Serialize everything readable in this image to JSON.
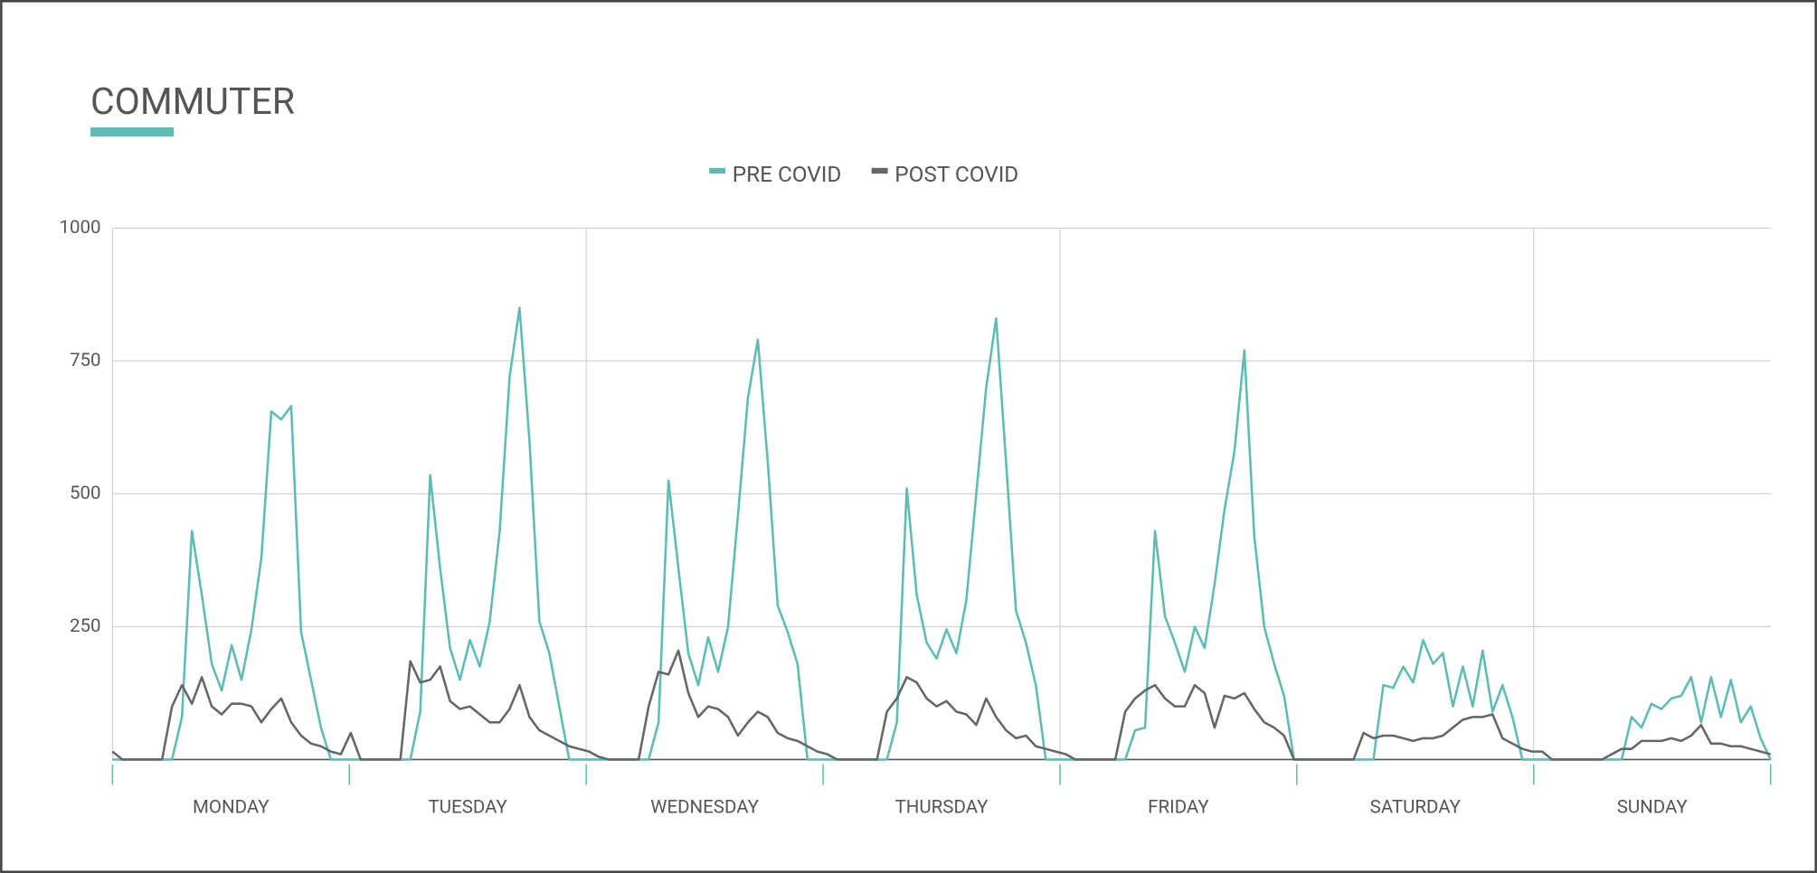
{
  "chart_data": {
    "type": "line",
    "title": "COMMUTER",
    "categories": [
      null,
      null,
      null,
      null,
      null,
      null,
      null,
      null,
      null,
      null,
      null,
      null,
      "MONDAY",
      null,
      null,
      null,
      null,
      null,
      null,
      null,
      null,
      null,
      null,
      null,
      null,
      null,
      null,
      null,
      null,
      null,
      null,
      null,
      null,
      null,
      null,
      null,
      "TUESDAY",
      null,
      null,
      null,
      null,
      null,
      null,
      null,
      null,
      null,
      null,
      null,
      null,
      null,
      null,
      null,
      null,
      null,
      null,
      null,
      null,
      null,
      null,
      null,
      "WEDNESDAY",
      null,
      null,
      null,
      null,
      null,
      null,
      null,
      null,
      null,
      null,
      null,
      null,
      null,
      null,
      null,
      null,
      null,
      null,
      null,
      null,
      null,
      null,
      null,
      "THURSDAY",
      null,
      null,
      null,
      null,
      null,
      null,
      null,
      null,
      null,
      null,
      null,
      null,
      null,
      null,
      null,
      null,
      null,
      null,
      null,
      null,
      null,
      null,
      null,
      "FRIDAY",
      null,
      null,
      null,
      null,
      null,
      null,
      null,
      null,
      null,
      null,
      null,
      null,
      null,
      null,
      null,
      null,
      null,
      null,
      null,
      null,
      null,
      null,
      null,
      "SATURDAY",
      null,
      null,
      null,
      null,
      null,
      null,
      null,
      null,
      null,
      null,
      null,
      null,
      null,
      null,
      null,
      null,
      null,
      null,
      null,
      null,
      null,
      null,
      null,
      "SUNDAY",
      null,
      null,
      null,
      null,
      null,
      null,
      null,
      null,
      null,
      null,
      null
    ],
    "series": [
      {
        "name": "PRE COVID",
        "color": "#5dbcb6",
        "values": [
          0,
          0,
          0,
          0,
          0,
          0,
          0,
          80,
          430,
          310,
          180,
          130,
          215,
          150,
          245,
          380,
          655,
          640,
          665,
          240,
          150,
          60,
          0,
          0,
          0,
          0,
          0,
          0,
          0,
          0,
          0,
          90,
          535,
          360,
          210,
          150,
          225,
          175,
          260,
          430,
          720,
          850,
          600,
          260,
          200,
          100,
          0,
          0,
          0,
          0,
          0,
          0,
          0,
          0,
          0,
          70,
          525,
          360,
          200,
          140,
          230,
          165,
          250,
          460,
          680,
          790,
          560,
          290,
          240,
          180,
          0,
          0,
          0,
          0,
          0,
          0,
          0,
          0,
          0,
          70,
          510,
          310,
          220,
          190,
          245,
          200,
          300,
          500,
          700,
          830,
          560,
          280,
          220,
          140,
          0,
          0,
          0,
          0,
          0,
          0,
          0,
          0,
          0,
          55,
          60,
          430,
          270,
          220,
          165,
          250,
          210,
          330,
          470,
          580,
          770,
          420,
          250,
          180,
          120,
          0,
          0,
          0,
          0,
          0,
          0,
          0,
          0,
          0,
          140,
          135,
          175,
          145,
          225,
          180,
          200,
          100,
          175,
          100,
          205,
          90,
          140,
          80,
          0,
          0,
          0,
          0,
          0,
          0,
          0,
          0,
          0,
          0,
          0,
          80,
          60,
          105,
          95,
          115,
          120,
          155,
          70,
          155,
          80,
          150,
          70,
          100,
          40,
          0
        ]
      },
      {
        "name": "POST COVID",
        "color": "#666666",
        "values": [
          15,
          0,
          0,
          0,
          0,
          0,
          100,
          140,
          105,
          155,
          100,
          85,
          105,
          105,
          100,
          70,
          95,
          115,
          70,
          45,
          30,
          25,
          15,
          10,
          50,
          0,
          0,
          0,
          0,
          0,
          185,
          145,
          150,
          175,
          110,
          95,
          100,
          85,
          70,
          70,
          95,
          140,
          80,
          55,
          45,
          35,
          25,
          20,
          15,
          5,
          0,
          0,
          0,
          0,
          100,
          165,
          160,
          205,
          125,
          80,
          100,
          95,
          80,
          45,
          70,
          90,
          80,
          50,
          40,
          35,
          25,
          15,
          10,
          0,
          0,
          0,
          0,
          0,
          90,
          115,
          155,
          145,
          115,
          100,
          110,
          90,
          85,
          65,
          115,
          80,
          55,
          40,
          45,
          25,
          20,
          15,
          10,
          0,
          0,
          0,
          0,
          0,
          90,
          115,
          130,
          140,
          115,
          100,
          100,
          140,
          125,
          60,
          120,
          115,
          125,
          95,
          70,
          60,
          45,
          0,
          0,
          0,
          0,
          0,
          0,
          0,
          50,
          40,
          45,
          45,
          40,
          35,
          40,
          40,
          45,
          60,
          75,
          80,
          80,
          85,
          40,
          30,
          20,
          15,
          15,
          0,
          0,
          0,
          0,
          0,
          0,
          10,
          20,
          20,
          35,
          35,
          35,
          40,
          35,
          45,
          65,
          30,
          30,
          25,
          25,
          20,
          15,
          10
        ]
      }
    ],
    "ylim": [
      0,
      1000
    ],
    "yticks": [
      250,
      500,
      750,
      1000
    ],
    "grid": true,
    "legend": "top"
  }
}
